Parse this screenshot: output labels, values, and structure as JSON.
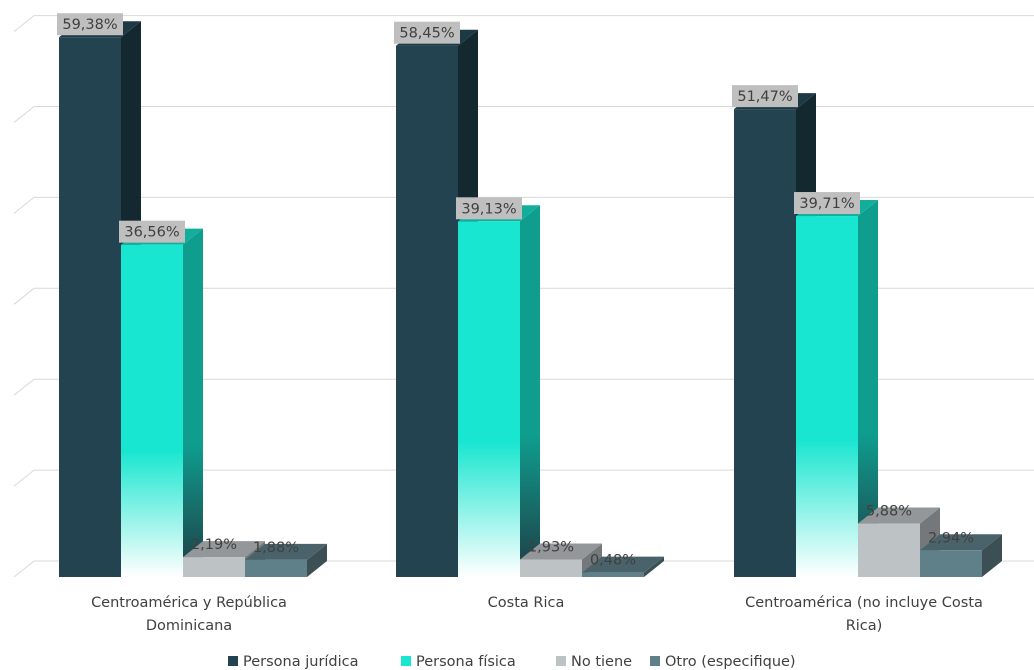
{
  "chart_data": {
    "type": "bar",
    "title": "",
    "xlabel": "",
    "ylabel": "",
    "ylim": [
      0,
      60
    ],
    "grid": true,
    "legend_position": "bottom",
    "categories": [
      [
        "Centroamérica y República",
        "Dominicana"
      ],
      [
        "Costa Rica"
      ],
      [
        "Centroamérica (no incluye Costa",
        "Rica)"
      ]
    ],
    "series": [
      {
        "name": "Persona jurídica",
        "color": "#22434F",
        "values": [
          59.38,
          58.45,
          51.47
        ],
        "labels": [
          "59,38%",
          "58,45%",
          "51,47%"
        ]
      },
      {
        "name": "Persona física",
        "color": "#19E6D0",
        "values": [
          36.56,
          39.13,
          39.71
        ],
        "labels": [
          "36,56%",
          "39,13%",
          "39,71%"
        ]
      },
      {
        "name": "No tiene",
        "color": "#BDC2C4",
        "values": [
          2.19,
          1.93,
          5.88
        ],
        "labels": [
          "2,19%",
          "1,93%",
          "5,88%"
        ]
      },
      {
        "name": "Otro (especifique)",
        "color": "#5F7F89",
        "values": [
          1.88,
          0.48,
          2.94
        ],
        "labels": [
          "1,88%",
          "0,48%",
          "2,94%"
        ]
      }
    ]
  }
}
